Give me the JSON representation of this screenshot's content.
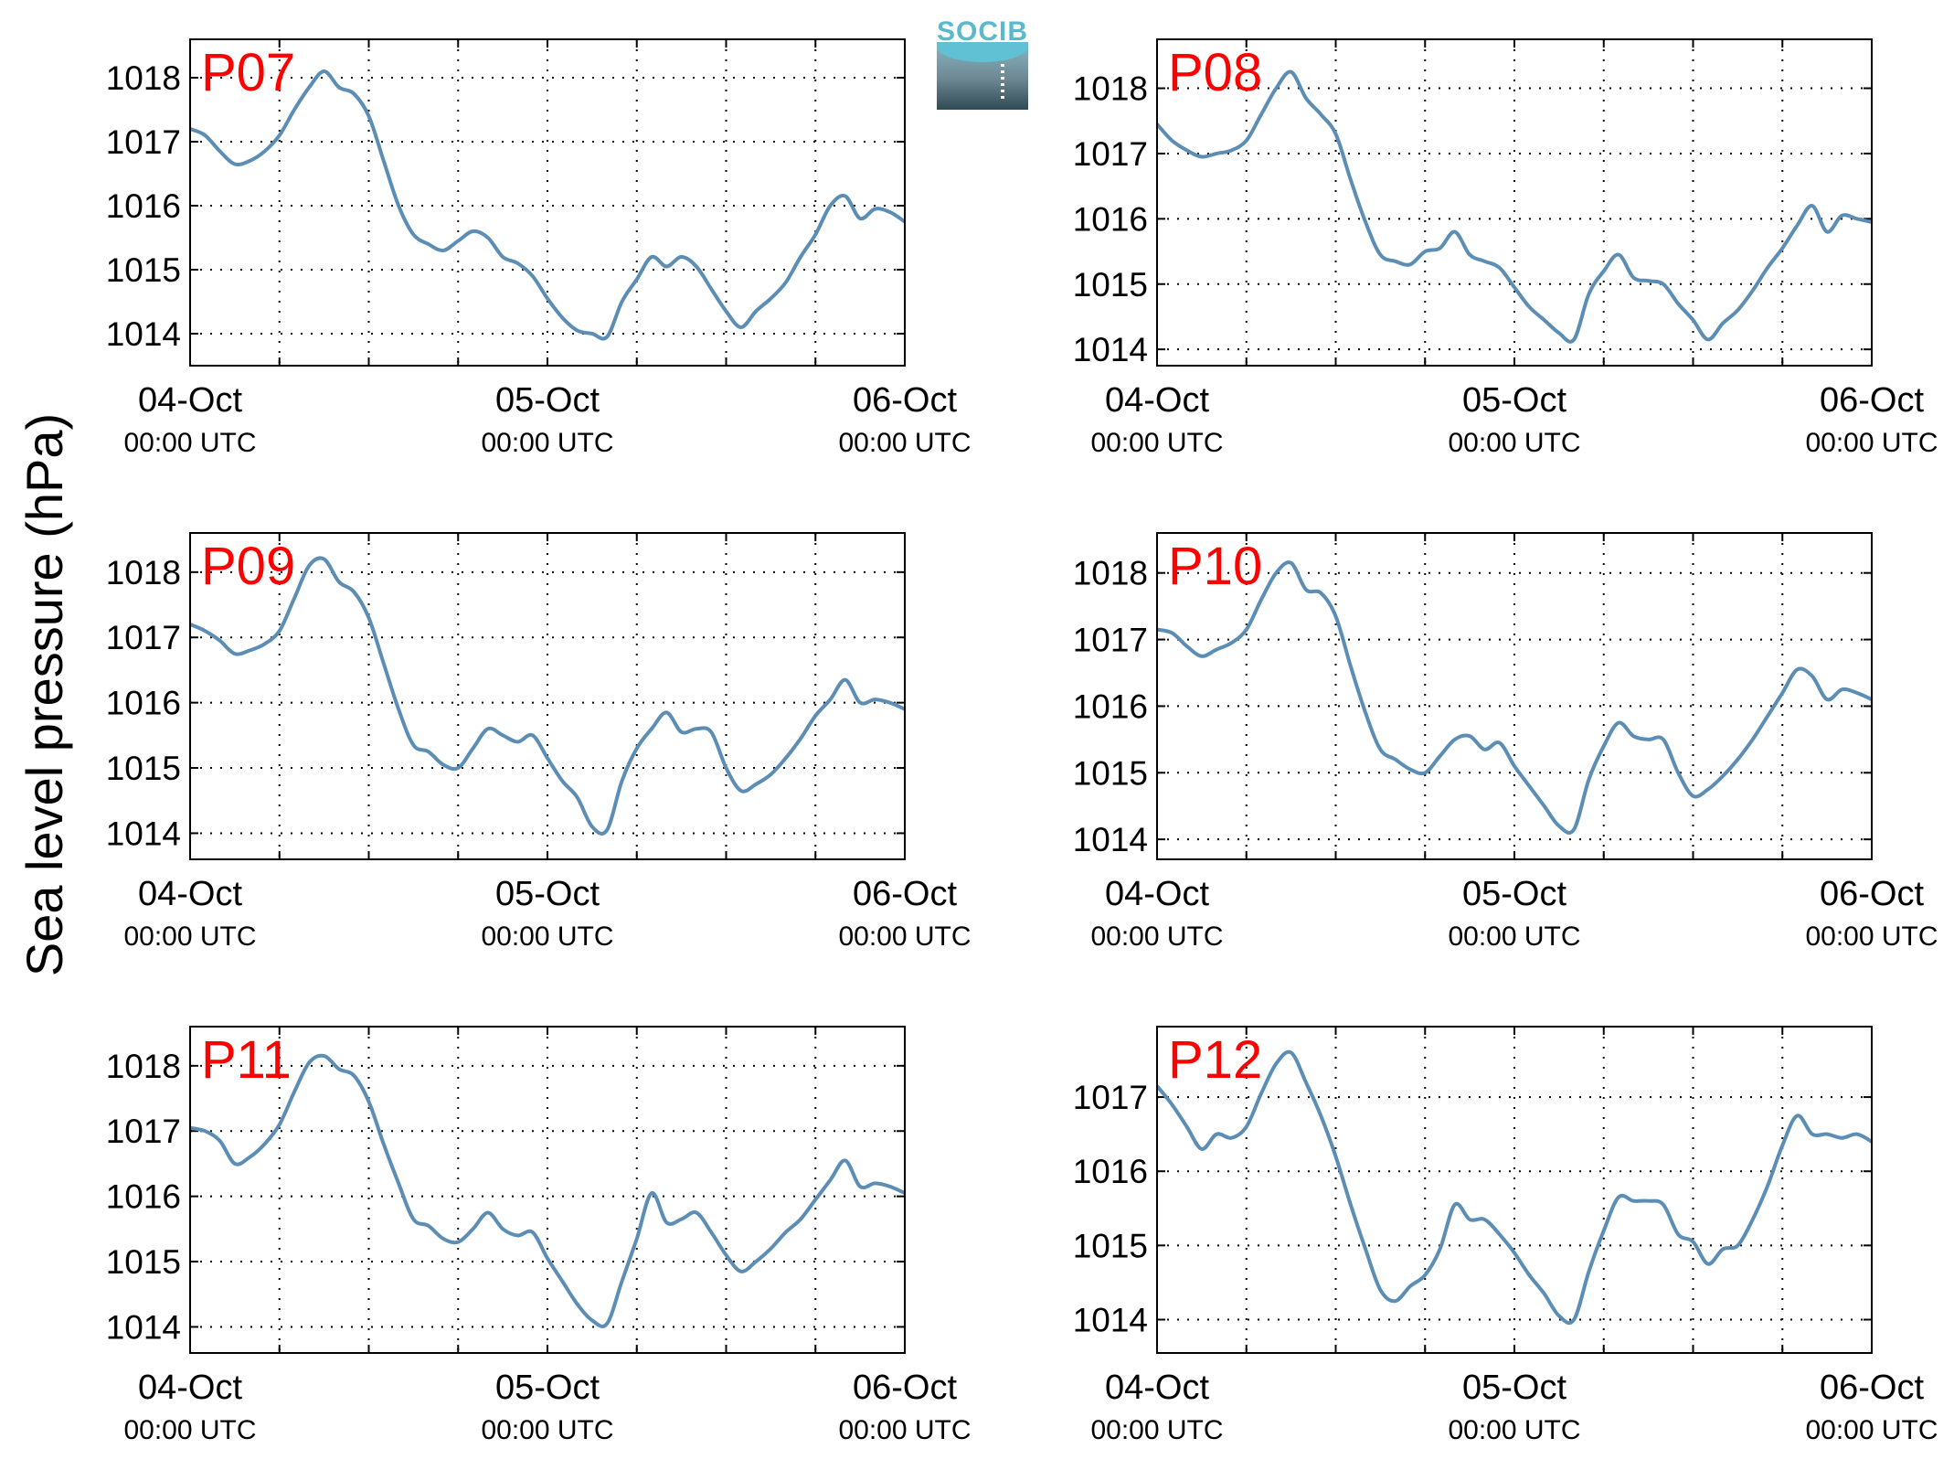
{
  "figure": {
    "ylabel": "Sea level pressure (hPa)",
    "logo": {
      "text": "SOCIB",
      "color": "#5ab9cc"
    },
    "line_color": "#5b8db5",
    "panel_label_color": "#ff0000"
  },
  "chart_data": [
    {
      "type": "line",
      "title": "P07",
      "xlim": [
        0,
        48
      ],
      "ylim": [
        1013.5,
        1018.6
      ],
      "yticks": [
        1014,
        1015,
        1016,
        1017,
        1018
      ],
      "xticks": [
        {
          "x": 0,
          "label": "04-Oct",
          "sublabel": "00:00 UTC"
        },
        {
          "x": 24,
          "label": "05-Oct",
          "sublabel": "00:00 UTC"
        },
        {
          "x": 48,
          "label": "06-Oct",
          "sublabel": "00:00 UTC"
        }
      ],
      "grid": true,
      "gridx": [
        6,
        12,
        18,
        24,
        30,
        36,
        42
      ],
      "x": [
        0,
        1,
        2,
        3,
        4,
        5,
        6,
        7,
        8,
        9,
        10,
        11,
        12,
        13,
        14,
        15,
        16,
        17,
        18,
        19,
        20,
        21,
        22,
        23,
        24,
        25,
        26,
        27,
        28,
        29,
        30,
        31,
        32,
        33,
        34,
        35,
        36,
        37,
        38,
        39,
        40,
        41,
        42,
        43,
        44,
        45,
        46,
        47,
        48
      ],
      "values": [
        1017.2,
        1017.1,
        1016.85,
        1016.65,
        1016.7,
        1016.85,
        1017.1,
        1017.5,
        1017.85,
        1018.1,
        1017.85,
        1017.75,
        1017.4,
        1016.7,
        1016.0,
        1015.55,
        1015.4,
        1015.3,
        1015.45,
        1015.6,
        1015.5,
        1015.2,
        1015.1,
        1014.9,
        1014.55,
        1014.25,
        1014.05,
        1014.0,
        1013.95,
        1014.5,
        1014.85,
        1015.2,
        1015.05,
        1015.2,
        1015.05,
        1014.7,
        1014.35,
        1014.1,
        1014.35,
        1014.55,
        1014.8,
        1015.2,
        1015.55,
        1016.0,
        1016.15,
        1015.8,
        1015.95,
        1015.9,
        1015.75
      ]
    },
    {
      "type": "line",
      "title": "P08",
      "xlim": [
        0,
        48
      ],
      "ylim": [
        1013.75,
        1018.75
      ],
      "yticks": [
        1014,
        1015,
        1016,
        1017,
        1018
      ],
      "xticks": [
        {
          "x": 0,
          "label": "04-Oct",
          "sublabel": "00:00 UTC"
        },
        {
          "x": 24,
          "label": "05-Oct",
          "sublabel": "00:00 UTC"
        },
        {
          "x": 48,
          "label": "06-Oct",
          "sublabel": "00:00 UTC"
        }
      ],
      "grid": true,
      "gridx": [
        6,
        12,
        18,
        24,
        30,
        36,
        42
      ],
      "x": [
        0,
        1,
        2,
        3,
        4,
        5,
        6,
        7,
        8,
        9,
        10,
        11,
        12,
        13,
        14,
        15,
        16,
        17,
        18,
        19,
        20,
        21,
        22,
        23,
        24,
        25,
        26,
        27,
        28,
        29,
        30,
        31,
        32,
        33,
        34,
        35,
        36,
        37,
        38,
        39,
        40,
        41,
        42,
        43,
        44,
        45,
        46,
        47,
        48
      ],
      "values": [
        1017.45,
        1017.2,
        1017.05,
        1016.95,
        1017.0,
        1017.05,
        1017.2,
        1017.6,
        1018.0,
        1018.25,
        1017.85,
        1017.6,
        1017.3,
        1016.6,
        1015.95,
        1015.45,
        1015.35,
        1015.3,
        1015.5,
        1015.55,
        1015.8,
        1015.45,
        1015.35,
        1015.25,
        1014.95,
        1014.65,
        1014.45,
        1014.25,
        1014.15,
        1014.85,
        1015.2,
        1015.45,
        1015.1,
        1015.05,
        1015.0,
        1014.7,
        1014.45,
        1014.15,
        1014.4,
        1014.6,
        1014.9,
        1015.25,
        1015.55,
        1015.9,
        1016.2,
        1015.8,
        1016.05,
        1016.0,
        1015.95
      ]
    },
    {
      "type": "line",
      "title": "P09",
      "xlim": [
        0,
        48
      ],
      "ylim": [
        1013.6,
        1018.6
      ],
      "yticks": [
        1014,
        1015,
        1016,
        1017,
        1018
      ],
      "xticks": [
        {
          "x": 0,
          "label": "04-Oct",
          "sublabel": "00:00 UTC"
        },
        {
          "x": 24,
          "label": "05-Oct",
          "sublabel": "00:00 UTC"
        },
        {
          "x": 48,
          "label": "06-Oct",
          "sublabel": "00:00 UTC"
        }
      ],
      "grid": true,
      "gridx": [
        6,
        12,
        18,
        24,
        30,
        36,
        42
      ],
      "x": [
        0,
        1,
        2,
        3,
        4,
        5,
        6,
        7,
        8,
        9,
        10,
        11,
        12,
        13,
        14,
        15,
        16,
        17,
        18,
        19,
        20,
        21,
        22,
        23,
        24,
        25,
        26,
        27,
        28,
        29,
        30,
        31,
        32,
        33,
        34,
        35,
        36,
        37,
        38,
        39,
        40,
        41,
        42,
        43,
        44,
        45,
        46,
        47,
        48
      ],
      "values": [
        1017.2,
        1017.1,
        1016.95,
        1016.75,
        1016.8,
        1016.9,
        1017.1,
        1017.6,
        1018.1,
        1018.2,
        1017.85,
        1017.7,
        1017.3,
        1016.6,
        1015.9,
        1015.35,
        1015.25,
        1015.05,
        1015.0,
        1015.3,
        1015.6,
        1015.5,
        1015.4,
        1015.5,
        1015.15,
        1014.8,
        1014.55,
        1014.1,
        1014.05,
        1014.8,
        1015.3,
        1015.6,
        1015.85,
        1015.55,
        1015.6,
        1015.55,
        1015.0,
        1014.65,
        1014.75,
        1014.9,
        1015.15,
        1015.45,
        1015.8,
        1016.05,
        1016.35,
        1016.0,
        1016.05,
        1016.0,
        1015.9
      ]
    },
    {
      "type": "line",
      "title": "P10",
      "xlim": [
        0,
        48
      ],
      "ylim": [
        1013.7,
        1018.6
      ],
      "yticks": [
        1014,
        1015,
        1016,
        1017,
        1018
      ],
      "xticks": [
        {
          "x": 0,
          "label": "04-Oct",
          "sublabel": "00:00 UTC"
        },
        {
          "x": 24,
          "label": "05-Oct",
          "sublabel": "00:00 UTC"
        },
        {
          "x": 48,
          "label": "06-Oct",
          "sublabel": "00:00 UTC"
        }
      ],
      "grid": true,
      "gridx": [
        6,
        12,
        18,
        24,
        30,
        36,
        42
      ],
      "x": [
        0,
        1,
        2,
        3,
        4,
        5,
        6,
        7,
        8,
        9,
        10,
        11,
        12,
        13,
        14,
        15,
        16,
        17,
        18,
        19,
        20,
        21,
        22,
        23,
        24,
        25,
        26,
        27,
        28,
        29,
        30,
        31,
        32,
        33,
        34,
        35,
        36,
        37,
        38,
        39,
        40,
        41,
        42,
        43,
        44,
        45,
        46,
        47,
        48
      ],
      "values": [
        1017.15,
        1017.1,
        1016.9,
        1016.75,
        1016.85,
        1016.95,
        1017.15,
        1017.6,
        1018.0,
        1018.15,
        1017.75,
        1017.7,
        1017.35,
        1016.6,
        1015.9,
        1015.35,
        1015.2,
        1015.05,
        1015.0,
        1015.25,
        1015.5,
        1015.55,
        1015.35,
        1015.45,
        1015.1,
        1014.8,
        1014.5,
        1014.2,
        1014.15,
        1014.9,
        1015.4,
        1015.75,
        1015.55,
        1015.5,
        1015.5,
        1015.0,
        1014.65,
        1014.75,
        1014.95,
        1015.2,
        1015.5,
        1015.85,
        1016.2,
        1016.55,
        1016.45,
        1016.1,
        1016.25,
        1016.2,
        1016.1
      ]
    },
    {
      "type": "line",
      "title": "P11",
      "xlim": [
        0,
        48
      ],
      "ylim": [
        1013.6,
        1018.6
      ],
      "yticks": [
        1014,
        1015,
        1016,
        1017,
        1018
      ],
      "xticks": [
        {
          "x": 0,
          "label": "04-Oct",
          "sublabel": "00:00 UTC"
        },
        {
          "x": 24,
          "label": "05-Oct",
          "sublabel": "00:00 UTC"
        },
        {
          "x": 48,
          "label": "06-Oct",
          "sublabel": "00:00 UTC"
        }
      ],
      "grid": true,
      "gridx": [
        6,
        12,
        18,
        24,
        30,
        36,
        42
      ],
      "x": [
        0,
        1,
        2,
        3,
        4,
        5,
        6,
        7,
        8,
        9,
        10,
        11,
        12,
        13,
        14,
        15,
        16,
        17,
        18,
        19,
        20,
        21,
        22,
        23,
        24,
        25,
        26,
        27,
        28,
        29,
        30,
        31,
        32,
        33,
        34,
        35,
        36,
        37,
        38,
        39,
        40,
        41,
        42,
        43,
        44,
        45,
        46,
        47,
        48
      ],
      "values": [
        1017.05,
        1017.0,
        1016.85,
        1016.5,
        1016.6,
        1016.8,
        1017.1,
        1017.6,
        1018.05,
        1018.15,
        1017.95,
        1017.85,
        1017.45,
        1016.8,
        1016.2,
        1015.65,
        1015.55,
        1015.35,
        1015.3,
        1015.5,
        1015.75,
        1015.5,
        1015.4,
        1015.45,
        1015.05,
        1014.7,
        1014.35,
        1014.1,
        1014.05,
        1014.7,
        1015.35,
        1016.05,
        1015.6,
        1015.65,
        1015.75,
        1015.45,
        1015.1,
        1014.85,
        1015.0,
        1015.2,
        1015.45,
        1015.65,
        1015.95,
        1016.25,
        1016.55,
        1016.15,
        1016.2,
        1016.15,
        1016.05
      ]
    },
    {
      "type": "line",
      "title": "P12",
      "xlim": [
        0,
        48
      ],
      "ylim": [
        1013.55,
        1017.95
      ],
      "yticks": [
        1014,
        1015,
        1016,
        1017
      ],
      "xticks": [
        {
          "x": 0,
          "label": "04-Oct",
          "sublabel": "00:00 UTC"
        },
        {
          "x": 24,
          "label": "05-Oct",
          "sublabel": "00:00 UTC"
        },
        {
          "x": 48,
          "label": "06-Oct",
          "sublabel": "00:00 UTC"
        }
      ],
      "grid": true,
      "gridx": [
        6,
        12,
        18,
        24,
        30,
        36,
        42
      ],
      "x": [
        0,
        1,
        2,
        3,
        4,
        5,
        6,
        7,
        8,
        9,
        10,
        11,
        12,
        13,
        14,
        15,
        16,
        17,
        18,
        19,
        20,
        21,
        22,
        23,
        24,
        25,
        26,
        27,
        28,
        29,
        30,
        31,
        32,
        33,
        34,
        35,
        36,
        37,
        38,
        39,
        40,
        41,
        42,
        43,
        44,
        45,
        46,
        47,
        48
      ],
      "values": [
        1017.15,
        1016.9,
        1016.6,
        1016.3,
        1016.5,
        1016.45,
        1016.6,
        1017.05,
        1017.45,
        1017.6,
        1017.2,
        1016.75,
        1016.2,
        1015.55,
        1014.95,
        1014.4,
        1014.25,
        1014.45,
        1014.6,
        1014.95,
        1015.55,
        1015.35,
        1015.35,
        1015.15,
        1014.9,
        1014.6,
        1014.35,
        1014.05,
        1014.0,
        1014.65,
        1015.2,
        1015.65,
        1015.6,
        1015.6,
        1015.55,
        1015.15,
        1015.05,
        1014.75,
        1014.95,
        1015.0,
        1015.35,
        1015.8,
        1016.35,
        1016.75,
        1016.5,
        1016.5,
        1016.45,
        1016.5,
        1016.4
      ]
    }
  ]
}
